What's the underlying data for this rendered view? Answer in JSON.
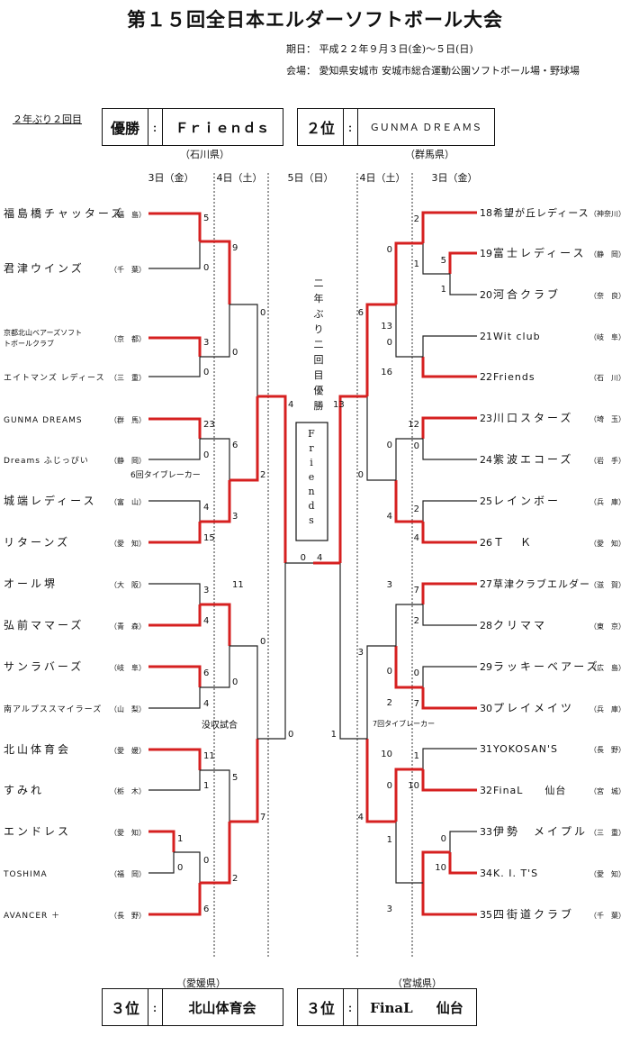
{
  "title": "第１５回全日本エルダーソフトボール大会",
  "period": "期日：  平成２２年９月３日(金)～５日(日)",
  "venue": "会場：  愛知県安城市    安城市総合運動公園ソフトボール場・野球場",
  "subtitle": "２年ぶり２回目",
  "champion": {
    "label": "優勝",
    "colon": ":",
    "team": "Ｆｒｉｅｎｄｓ",
    "pref": "（石川県）"
  },
  "second": {
    "label": "２位",
    "colon": ":",
    "team": "ＧＵＮＭＡ  ＤＲＥＡＭＳ",
    "pref": "（群馬県）"
  },
  "third_left": {
    "label": "３位",
    "colon": ":",
    "team": "北山体育会",
    "pref": "（愛媛県）"
  },
  "third_right": {
    "label": "３位",
    "colon": ":",
    "team": "FinaL     仙台",
    "pref": "（宮城県）"
  },
  "days": {
    "d3_left": "3日（金）",
    "d4_left": "4日（土）",
    "d5": "5日（日）",
    "d4_right": "4日（土）",
    "d3_right": "3日（金）"
  },
  "final_vertical": "二年ぶり二回目優勝",
  "final_box": "Friends",
  "notes": {
    "tiebreak6": "6回タイブレーカー",
    "forfeit": "没収試合",
    "tiebreak7": "7回タイブレーカー"
  },
  "left_teams": [
    {
      "name": "福島橋チャッターズ",
      "pref": "（福　島）",
      "winner": true
    },
    {
      "name": "君津ウインズ",
      "pref": "（千　葉）",
      "winner": false
    },
    {
      "name": "京都北山ベアーズソフト",
      "name2": "トボールクラブ",
      "pref": "（京　都）",
      "winner": true
    },
    {
      "name": "エイトマンズ レディース",
      "pref": "（三　重）",
      "winner": false
    },
    {
      "name": "GUNMA DREAMS",
      "pref": "（群　馬）",
      "winner": true
    },
    {
      "name": "Dreams ふじっぴい",
      "pref": "（静　岡）",
      "winner": false
    },
    {
      "name": "城端レディース",
      "pref": "（富　山）",
      "winner": false
    },
    {
      "name": "リターンズ",
      "pref": "（愛　知）",
      "winner": true
    },
    {
      "name": "オール堺",
      "pref": "（大　阪）",
      "winner": false
    },
    {
      "name": "弘前ママーズ",
      "pref": "（青　森）",
      "winner": true
    },
    {
      "name": "サンラバーズ",
      "pref": "（岐　阜）",
      "winner": true
    },
    {
      "name": "南アルプススマイラーズ",
      "pref": "（山　梨）",
      "winner": false
    },
    {
      "name": "北山体育会",
      "pref": "（愛　媛）",
      "winner": true
    },
    {
      "name": "すみれ",
      "pref": "（栃　木）",
      "winner": false
    },
    {
      "name": "エンドレス",
      "pref": "（愛　知）",
      "winner": true
    },
    {
      "name": "TOSHIMA",
      "pref": "（福　岡）",
      "winner": false
    },
    {
      "name": "AVANCER ＋",
      "pref": "（長　野）",
      "winner": true
    }
  ],
  "right_teams": [
    {
      "num": "18",
      "name": "希望が丘レディース",
      "pref": "（神奈川）",
      "winner": true
    },
    {
      "num": "19",
      "name": "富士レディース",
      "pref": "（静　岡）",
      "winner": true
    },
    {
      "num": "20",
      "name": "河合クラブ",
      "pref": "（奈　良）",
      "winner": false
    },
    {
      "num": "21",
      "name": "Wit  club",
      "pref": "（岐　阜）",
      "winner": false
    },
    {
      "num": "22",
      "name": "Friends",
      "pref": "（石　川）",
      "winner": true
    },
    {
      "num": "23",
      "name": "川口スターズ",
      "pref": "（埼　玉）",
      "winner": true
    },
    {
      "num": "24",
      "name": "紫波エコーズ",
      "pref": "（岩　手）",
      "winner": false
    },
    {
      "num": "25",
      "name": "レインボー",
      "pref": "（兵　庫）",
      "winner": false
    },
    {
      "num": "26",
      "name": "Ｔ　Ｋ",
      "pref": "（愛　知）",
      "winner": true
    },
    {
      "num": "27",
      "name": "草津クラブエルダー",
      "pref": "（滋　賀）",
      "winner": true
    },
    {
      "num": "28",
      "name": "クリママ",
      "pref": "（東　京）",
      "winner": false
    },
    {
      "num": "29",
      "name": "ラッキーベアーズ",
      "pref": "（広　島）",
      "winner": false
    },
    {
      "num": "30",
      "name": "プレイメイツ",
      "pref": "（兵　庫）",
      "winner": true
    },
    {
      "num": "31",
      "name": "YOKOSAN'S",
      "pref": "（長　野）",
      "winner": false
    },
    {
      "num": "32",
      "name": "FinaL　　仙台",
      "pref": "（宮　城）",
      "winner": true
    },
    {
      "num": "33",
      "name": "伊勢　メイプル",
      "pref": "（三　重）",
      "winner": false
    },
    {
      "num": "34",
      "name": "K. I. T'S",
      "pref": "（愛　知）",
      "winner": true
    },
    {
      "num": "35",
      "name": "四街道クラブ",
      "pref": "（千　葉）",
      "winner": true
    }
  ],
  "scores": {
    "l_r1": [
      "5",
      "0",
      "3",
      "0",
      "23",
      "0",
      "4",
      "15",
      "3",
      "4",
      "6",
      "4",
      "11",
      "1",
      "1",
      "0",
      "0",
      "6"
    ],
    "l_r2": [
      "9",
      "0",
      "6",
      "3",
      "11",
      "0",
      "5",
      "2"
    ],
    "l_r3": [
      "0",
      "2",
      "0",
      "7"
    ],
    "l_r4": [
      "4",
      "0"
    ],
    "final": [
      "0",
      "4",
      "13"
    ],
    "r_r4": [
      "1"
    ],
    "r_r3": [
      "6",
      "0",
      "3",
      "4"
    ],
    "r_r2": [
      "0",
      "13",
      "0",
      "16",
      "0",
      "4",
      "3",
      "0",
      "2",
      "10",
      "0",
      "1",
      "3"
    ],
    "r_r1": [
      "2",
      "1",
      "5",
      "1",
      "12",
      "0",
      "2",
      "4",
      "7",
      "2",
      "0",
      "7",
      "1",
      "10",
      "0",
      "10"
    ]
  }
}
